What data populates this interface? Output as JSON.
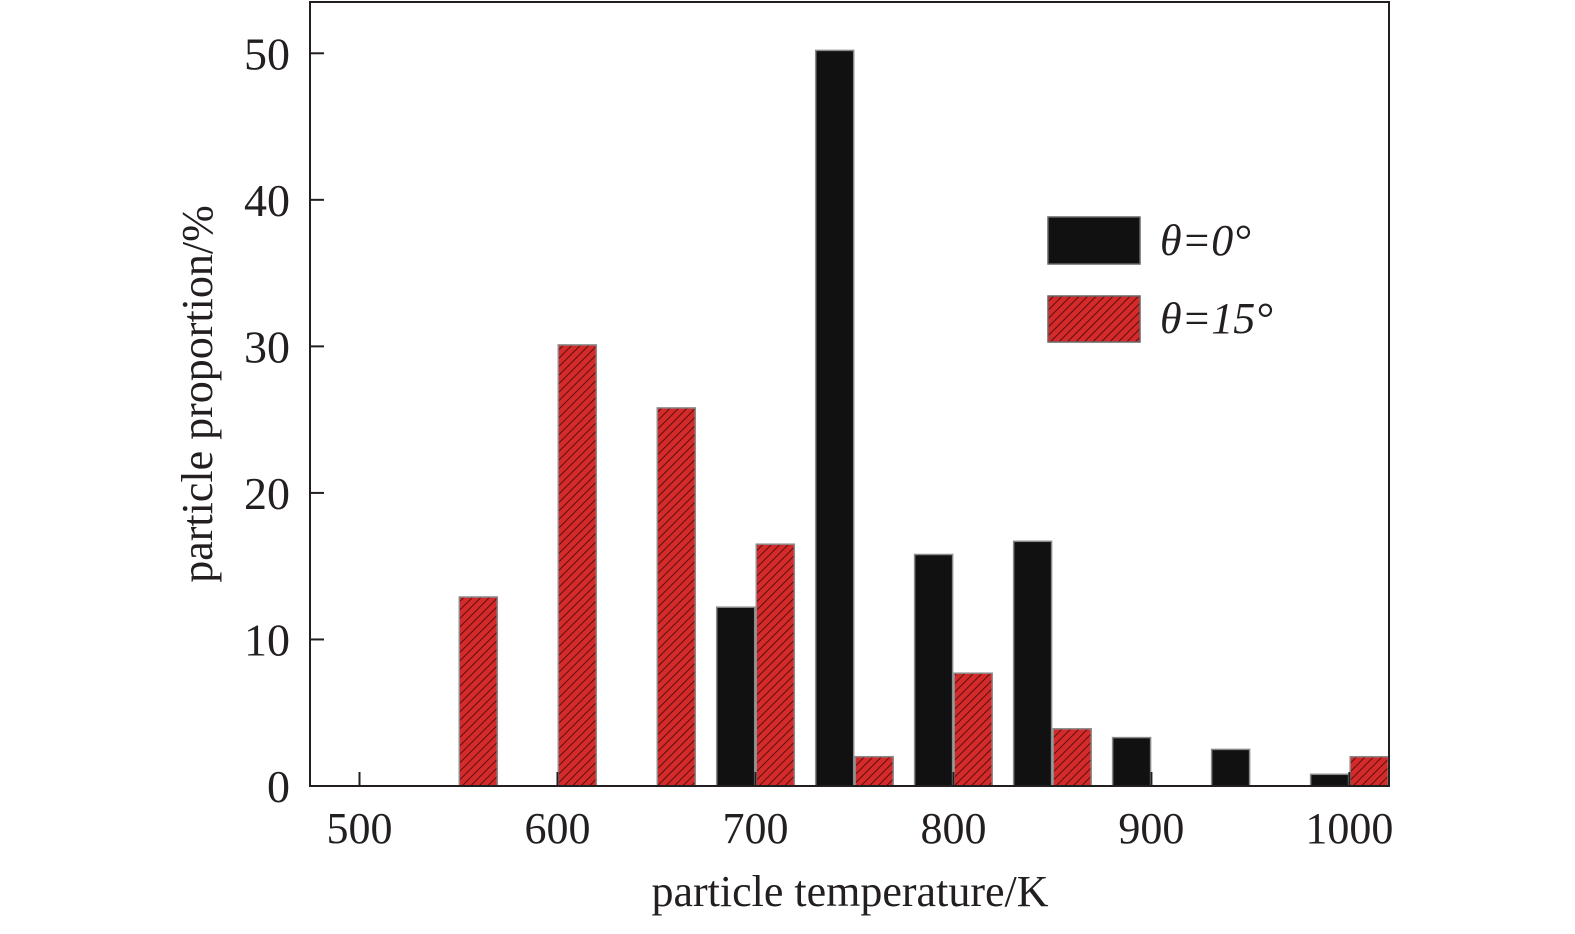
{
  "chart_data": {
    "type": "bar",
    "xlabel": "particle temperature/K",
    "ylabel": "particle proportion/%",
    "xlim": [
      475,
      1020
    ],
    "ylim": [
      0,
      53.5
    ],
    "xticks": [
      500,
      600,
      700,
      800,
      900,
      1000
    ],
    "yticks": [
      0,
      10,
      20,
      30,
      40,
      50
    ],
    "grid": false,
    "legend_position": "top-right",
    "series": [
      {
        "name": "θ=0°",
        "color": "#111111",
        "pattern": "solid",
        "points": [
          {
            "x": 690,
            "y": 12.2
          },
          {
            "x": 740,
            "y": 50.2
          },
          {
            "x": 790,
            "y": 15.8
          },
          {
            "x": 840,
            "y": 16.7
          },
          {
            "x": 890,
            "y": 3.3
          },
          {
            "x": 940,
            "y": 2.5
          },
          {
            "x": 990,
            "y": 0.8
          }
        ]
      },
      {
        "name": "θ=15°",
        "color": "#d42a2a",
        "pattern": "hatched",
        "points": [
          {
            "x": 560,
            "y": 12.9
          },
          {
            "x": 610,
            "y": 30.1
          },
          {
            "x": 660,
            "y": 25.8
          },
          {
            "x": 710,
            "y": 16.5
          },
          {
            "x": 760,
            "y": 2.0
          },
          {
            "x": 810,
            "y": 7.7
          },
          {
            "x": 860,
            "y": 3.9
          },
          {
            "x": 1010,
            "y": 2.0
          }
        ]
      }
    ]
  }
}
